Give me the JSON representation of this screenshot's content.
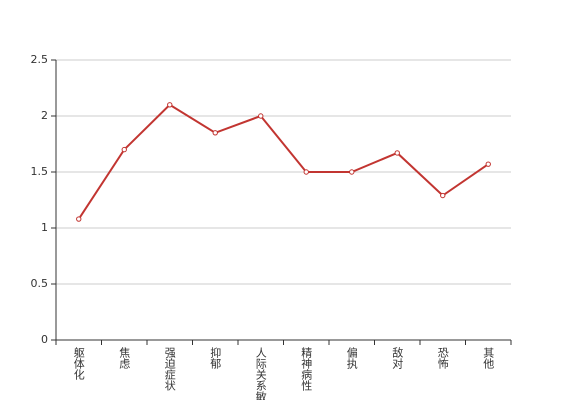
{
  "chart_data": {
    "type": "line",
    "categories": [
      "躯体化",
      "焦虑",
      "强迫症状",
      "抑郁",
      "人际关系敏感",
      "精神病性",
      "偏执",
      "敌对",
      "恐怖",
      "其他"
    ],
    "values": [
      1.08,
      1.7,
      2.1,
      1.85,
      2.0,
      1.5,
      1.5,
      1.67,
      1.29,
      1.57
    ],
    "color": "#c23531",
    "ylim": [
      0,
      2.5
    ],
    "yticks": [
      0,
      0.5,
      1,
      1.5,
      2,
      2.5
    ],
    "grid": true
  }
}
